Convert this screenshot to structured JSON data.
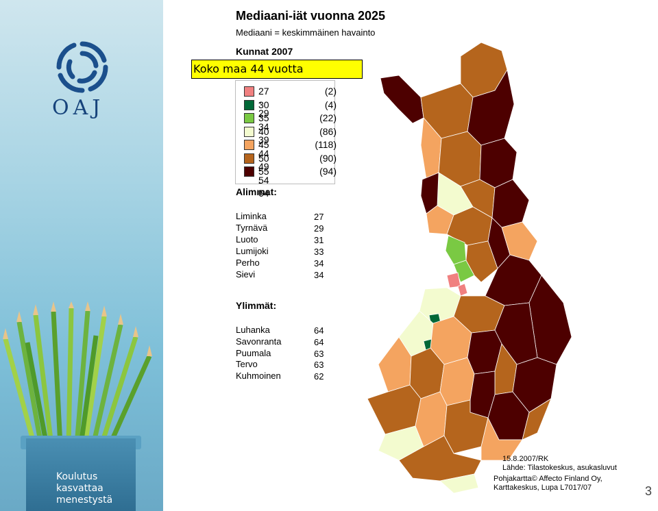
{
  "branding": {
    "logo_text": "OAJ",
    "pot_text_lines": [
      "Koulutus",
      "kasvattaa",
      "menestystä"
    ]
  },
  "header": {
    "title": "Mediaani-iät vuonna 2025",
    "subtitle": "Mediaani = keskimmäinen havainto",
    "kunnat": "Kunnat 2007",
    "koko_maa": "Koko maa 44 vuotta"
  },
  "legend": [
    {
      "range": "27 - 29",
      "count": "(2)",
      "color": "#f08080"
    },
    {
      "range": "30 - 34",
      "count": "(4)",
      "color": "#006837"
    },
    {
      "range": "35 - 39",
      "count": "(22)",
      "color": "#7ac943"
    },
    {
      "range": "40 - 44",
      "count": "(86)",
      "color": "#f3fbcf"
    },
    {
      "range": "45 - 49",
      "count": "(118)",
      "color": "#f4a460"
    },
    {
      "range": "50 - 54",
      "count": "(90)",
      "color": "#b5651d"
    },
    {
      "range": "55 - 64",
      "count": "(94)",
      "color": "#4d0000"
    }
  ],
  "lowest": {
    "heading": "Alimmat:",
    "items": [
      {
        "name": "Liminka",
        "value": "27"
      },
      {
        "name": "Tyrnävä",
        "value": "29"
      },
      {
        "name": "Luoto",
        "value": "31"
      },
      {
        "name": "Lumijoki",
        "value": "33"
      },
      {
        "name": "Perho",
        "value": "34"
      },
      {
        "name": "Sievi",
        "value": "34"
      }
    ]
  },
  "highest": {
    "heading": "Ylimmät:",
    "items": [
      {
        "name": "Luhanka",
        "value": "64"
      },
      {
        "name": "Savonranta",
        "value": "64"
      },
      {
        "name": "Puumala",
        "value": "63"
      },
      {
        "name": "Tervo",
        "value": "63"
      },
      {
        "name": "Kuhmoinen",
        "value": "62"
      }
    ]
  },
  "credits": {
    "date": "15.8.2007/RK",
    "source": "Lähde: Tilastokeskus, asukasluvut",
    "map_line1": "Pohjakartta© Affecto Finland Oy,",
    "map_line2": "Karttakeskus, Lupa L7017/07"
  },
  "page_number": "3"
}
